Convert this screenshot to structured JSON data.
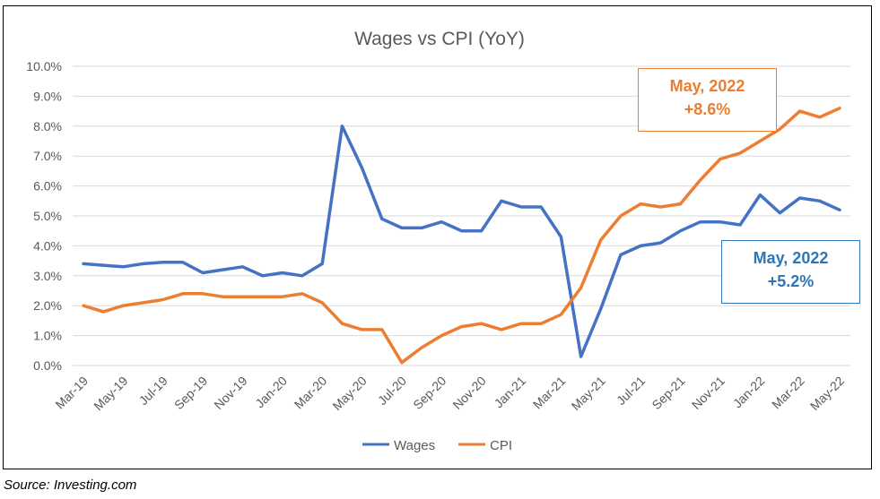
{
  "colors": {
    "wages": "#4472C4",
    "cpi": "#ED7D31",
    "grid": "#D9D9D9",
    "text": "#595959",
    "wages_callout": "#2E75B6"
  },
  "source": "Source:  Investing.com",
  "callouts": {
    "cpi": {
      "line1": "May, 2022",
      "line2": "+8.6%"
    },
    "wages": {
      "line1": "May, 2022",
      "line2": "+5.2%"
    }
  },
  "chart_data": {
    "type": "line",
    "title": "Wages vs CPI (YoY)",
    "xlabel": "",
    "ylabel": "",
    "ylim": [
      0,
      10
    ],
    "yticks": [
      "0.0%",
      "1.0%",
      "2.0%",
      "3.0%",
      "4.0%",
      "5.0%",
      "6.0%",
      "7.0%",
      "8.0%",
      "9.0%",
      "10.0%"
    ],
    "grid": true,
    "legend_position": "bottom",
    "x": [
      "Mar-19",
      "Apr-19",
      "May-19",
      "Jun-19",
      "Jul-19",
      "Aug-19",
      "Sep-19",
      "Oct-19",
      "Nov-19",
      "Dec-19",
      "Jan-20",
      "Feb-20",
      "Mar-20",
      "Apr-20",
      "May-20",
      "Jun-20",
      "Jul-20",
      "Aug-20",
      "Sep-20",
      "Oct-20",
      "Nov-20",
      "Dec-20",
      "Jan-21",
      "Feb-21",
      "Mar-21",
      "Apr-21",
      "May-21",
      "Jun-21",
      "Jul-21",
      "Aug-21",
      "Sep-21",
      "Oct-21",
      "Nov-21",
      "Dec-21",
      "Jan-22",
      "Feb-22",
      "Mar-22",
      "Apr-22",
      "May-22"
    ],
    "x_tick_labels": [
      "Mar-19",
      "May-19",
      "Jul-19",
      "Sep-19",
      "Nov-19",
      "Jan-20",
      "Mar-20",
      "May-20",
      "Jul-20",
      "Sep-20",
      "Nov-20",
      "Jan-21",
      "Mar-21",
      "May-21",
      "Jul-21",
      "Sep-21",
      "Nov-21",
      "Jan-22",
      "Mar-22",
      "May-22"
    ],
    "series": [
      {
        "name": "Wages",
        "values": [
          3.4,
          3.35,
          3.3,
          3.4,
          3.45,
          3.45,
          3.1,
          3.2,
          3.3,
          3.0,
          3.1,
          3.0,
          3.4,
          8.0,
          6.6,
          4.9,
          4.6,
          4.6,
          4.8,
          4.5,
          4.5,
          5.5,
          5.3,
          5.3,
          4.3,
          0.3,
          1.9,
          3.7,
          4.0,
          4.1,
          4.5,
          4.8,
          4.8,
          4.7,
          5.7,
          5.1,
          5.6,
          5.5,
          5.2
        ]
      },
      {
        "name": "CPI",
        "values": [
          2.0,
          1.8,
          2.0,
          2.1,
          2.2,
          2.4,
          2.4,
          2.3,
          2.3,
          2.3,
          2.3,
          2.4,
          2.1,
          1.4,
          1.2,
          1.2,
          0.1,
          0.6,
          1.0,
          1.3,
          1.4,
          1.2,
          1.4,
          1.4,
          1.7,
          2.6,
          4.2,
          5.0,
          5.4,
          5.3,
          5.4,
          6.2,
          6.9,
          7.1,
          7.5,
          7.9,
          8.5,
          8.3,
          8.6
        ]
      }
    ]
  }
}
